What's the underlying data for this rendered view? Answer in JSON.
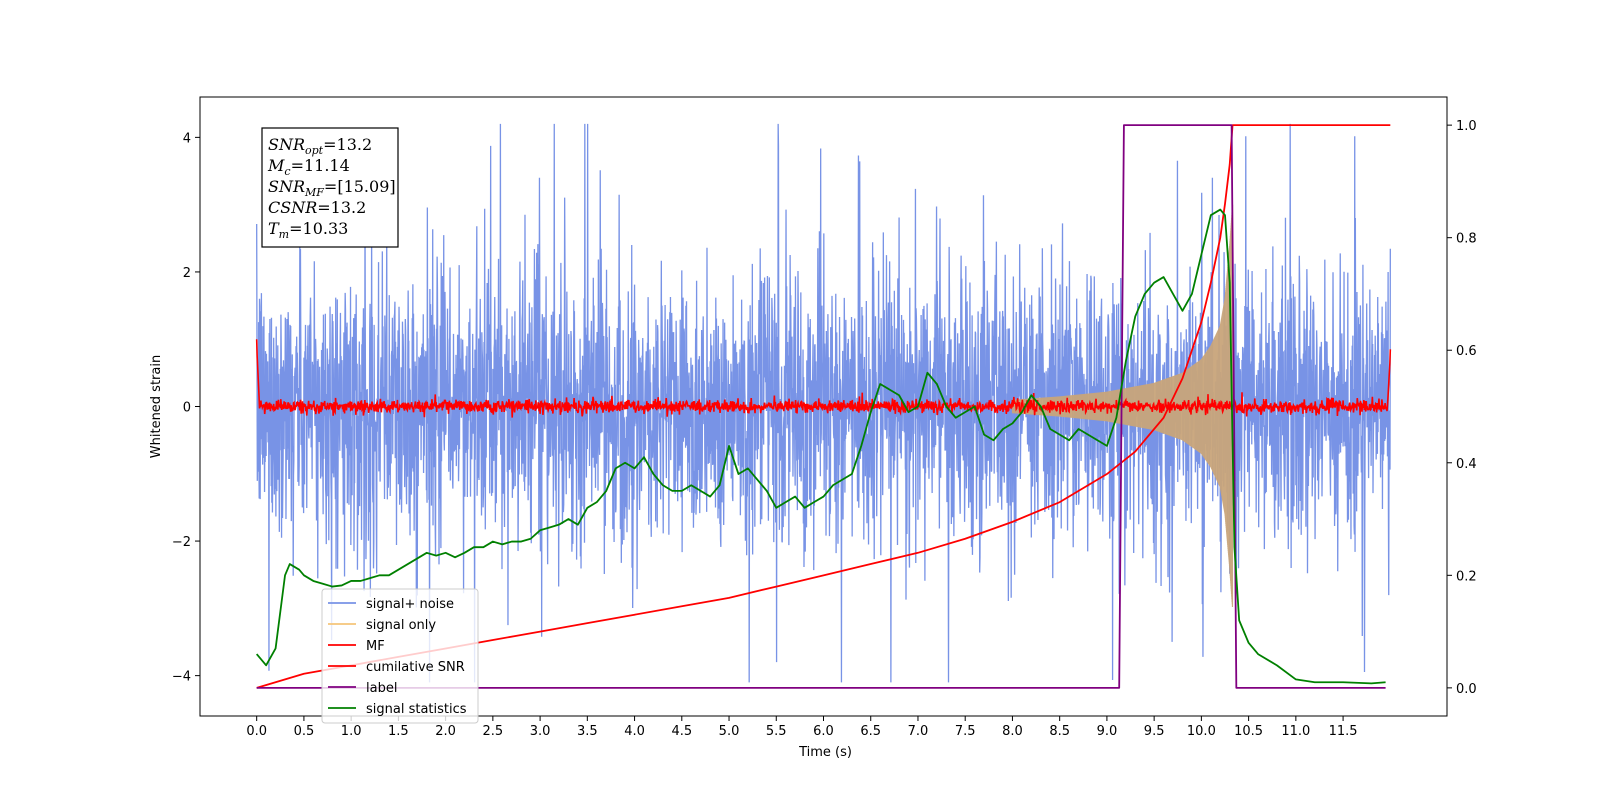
{
  "chart_data": {
    "type": "line",
    "xlabel": "Time (s)",
    "ylabel": "Whitened strain",
    "xlim": [
      -0.6,
      12.6
    ],
    "ylim": [
      -4.6,
      4.6
    ],
    "ylim_right": [
      -0.05,
      1.05
    ],
    "x_ticks": [
      0.0,
      0.5,
      1.0,
      1.5,
      2.0,
      2.5,
      3.0,
      3.5,
      4.0,
      4.5,
      5.0,
      5.5,
      6.0,
      6.5,
      7.0,
      7.5,
      8.0,
      8.5,
      9.0,
      9.5,
      10.0,
      10.5,
      11.0,
      11.5
    ],
    "x_tick_labels": [
      "0.0",
      "0.5",
      "1.0",
      "1.5",
      "2.0",
      "2.5",
      "3.0",
      "3.5",
      "4.0",
      "4.5",
      "5.0",
      "5.5",
      "6.0",
      "6.5",
      "7.0",
      "7.5",
      "8.0",
      "8.5",
      "9.0",
      "9.5",
      "10.0",
      "10.5",
      "11.0",
      "11.5"
    ],
    "y_ticks_left": [
      -4,
      -2,
      0,
      2,
      4
    ],
    "y_tick_labels_left": [
      "−4",
      "−2",
      "0",
      "2",
      "4"
    ],
    "y_ticks_right": [
      0.0,
      0.2,
      0.4,
      0.6,
      0.8,
      1.0
    ],
    "y_tick_labels_right": [
      "0.0",
      "0.2",
      "0.4",
      "0.6",
      "0.8",
      "1.0"
    ],
    "grid": false,
    "legend_position": "lower-left",
    "info_box": {
      "position": "top-left",
      "lines": [
        {
          "main": "SNR",
          "sub": "opt",
          "value": "=13.2"
        },
        {
          "main": "M",
          "sub": "c",
          "value": "=11.14"
        },
        {
          "main": "SNR",
          "sub": "MF",
          "value": "=[15.09]"
        },
        {
          "main": "CSNR",
          "sub": "",
          "value": "=13.2"
        },
        {
          "main": "T",
          "sub": "m",
          "value": "=10.33"
        }
      ]
    },
    "series": [
      {
        "name": "signal+ noise",
        "color": "#7893e6",
        "axis": "left",
        "kind": "noise",
        "x_range": [
          0.0,
          12.0
        ],
        "typical_amplitude": 1.5,
        "peak_max": 4.2,
        "peak_min": -4.1
      },
      {
        "name": "signal only",
        "color": "#f5c57a",
        "axis": "left",
        "kind": "chirp",
        "x_range": [
          8.0,
          10.33
        ],
        "envelope": {
          "x": [
            8.0,
            8.5,
            9.0,
            9.5,
            9.8,
            10.0,
            10.1,
            10.2,
            10.25,
            10.3,
            10.33
          ],
          "amp": [
            0.1,
            0.15,
            0.22,
            0.35,
            0.5,
            0.7,
            0.9,
            1.2,
            1.6,
            2.4,
            3.0
          ]
        }
      },
      {
        "name": "MF",
        "color": "#ff0000",
        "axis": "left",
        "kind": "mf",
        "x_range": [
          0.0,
          12.0
        ],
        "baseline_noise": 0.08,
        "start_value": 1.0,
        "end_value": 0.85
      },
      {
        "name": "cumilative SNR",
        "color": "#ff0000",
        "axis": "right",
        "x": [
          0.0,
          0.5,
          1.0,
          1.5,
          2.0,
          2.5,
          3.0,
          3.5,
          4.0,
          4.5,
          5.0,
          5.5,
          6.0,
          6.5,
          7.0,
          7.5,
          8.0,
          8.5,
          9.0,
          9.3,
          9.6,
          9.8,
          10.0,
          10.1,
          10.2,
          10.25,
          10.3,
          10.33,
          11.0,
          12.0
        ],
        "y": [
          0.0,
          0.025,
          0.04,
          0.055,
          0.07,
          0.085,
          0.1,
          0.115,
          0.13,
          0.145,
          0.16,
          0.18,
          0.2,
          0.22,
          0.24,
          0.265,
          0.295,
          0.33,
          0.38,
          0.42,
          0.48,
          0.55,
          0.65,
          0.72,
          0.8,
          0.86,
          0.93,
          1.0,
          1.0,
          1.0
        ]
      },
      {
        "name": "label",
        "color": "#800080",
        "axis": "right",
        "x": [
          0.0,
          9.13,
          9.18,
          10.32,
          10.37,
          11.95
        ],
        "y": [
          0.0,
          0.0,
          1.0,
          1.0,
          0.0,
          0.0
        ]
      },
      {
        "name": "signal statistics",
        "color": "#008000",
        "axis": "right",
        "x": [
          0.0,
          0.1,
          0.2,
          0.3,
          0.35,
          0.45,
          0.5,
          0.6,
          0.7,
          0.8,
          0.9,
          1.0,
          1.1,
          1.2,
          1.3,
          1.4,
          1.5,
          1.6,
          1.7,
          1.8,
          1.9,
          2.0,
          2.1,
          2.2,
          2.3,
          2.4,
          2.5,
          2.6,
          2.7,
          2.8,
          2.9,
          3.0,
          3.1,
          3.2,
          3.3,
          3.4,
          3.5,
          3.6,
          3.7,
          3.8,
          3.9,
          4.0,
          4.1,
          4.2,
          4.3,
          4.4,
          4.5,
          4.6,
          4.7,
          4.8,
          4.9,
          5.0,
          5.1,
          5.2,
          5.3,
          5.4,
          5.5,
          5.6,
          5.7,
          5.8,
          5.9,
          6.0,
          6.1,
          6.2,
          6.3,
          6.4,
          6.5,
          6.6,
          6.7,
          6.8,
          6.9,
          7.0,
          7.1,
          7.2,
          7.3,
          7.4,
          7.5,
          7.6,
          7.7,
          7.8,
          7.9,
          8.0,
          8.1,
          8.2,
          8.3,
          8.4,
          8.5,
          8.6,
          8.7,
          8.8,
          8.9,
          9.0,
          9.1,
          9.2,
          9.3,
          9.4,
          9.5,
          9.6,
          9.7,
          9.8,
          9.9,
          10.0,
          10.1,
          10.2,
          10.25,
          10.3,
          10.35,
          10.4,
          10.5,
          10.6,
          10.8,
          11.0,
          11.2,
          11.5,
          11.8,
          11.95
        ],
        "y": [
          0.06,
          0.04,
          0.07,
          0.2,
          0.22,
          0.21,
          0.2,
          0.19,
          0.185,
          0.18,
          0.182,
          0.19,
          0.19,
          0.195,
          0.2,
          0.2,
          0.21,
          0.22,
          0.23,
          0.24,
          0.235,
          0.24,
          0.232,
          0.24,
          0.25,
          0.25,
          0.26,
          0.255,
          0.26,
          0.26,
          0.265,
          0.28,
          0.285,
          0.29,
          0.3,
          0.29,
          0.32,
          0.33,
          0.35,
          0.39,
          0.4,
          0.39,
          0.41,
          0.38,
          0.36,
          0.35,
          0.35,
          0.36,
          0.35,
          0.34,
          0.36,
          0.43,
          0.38,
          0.39,
          0.37,
          0.35,
          0.32,
          0.33,
          0.34,
          0.32,
          0.33,
          0.34,
          0.36,
          0.37,
          0.38,
          0.43,
          0.49,
          0.54,
          0.53,
          0.52,
          0.49,
          0.5,
          0.56,
          0.54,
          0.5,
          0.48,
          0.49,
          0.5,
          0.45,
          0.44,
          0.46,
          0.47,
          0.49,
          0.52,
          0.5,
          0.46,
          0.45,
          0.44,
          0.46,
          0.45,
          0.44,
          0.43,
          0.48,
          0.58,
          0.66,
          0.7,
          0.72,
          0.73,
          0.7,
          0.67,
          0.7,
          0.77,
          0.84,
          0.85,
          0.84,
          0.72,
          0.25,
          0.12,
          0.08,
          0.06,
          0.04,
          0.015,
          0.01,
          0.01,
          0.008,
          0.01
        ]
      }
    ]
  }
}
